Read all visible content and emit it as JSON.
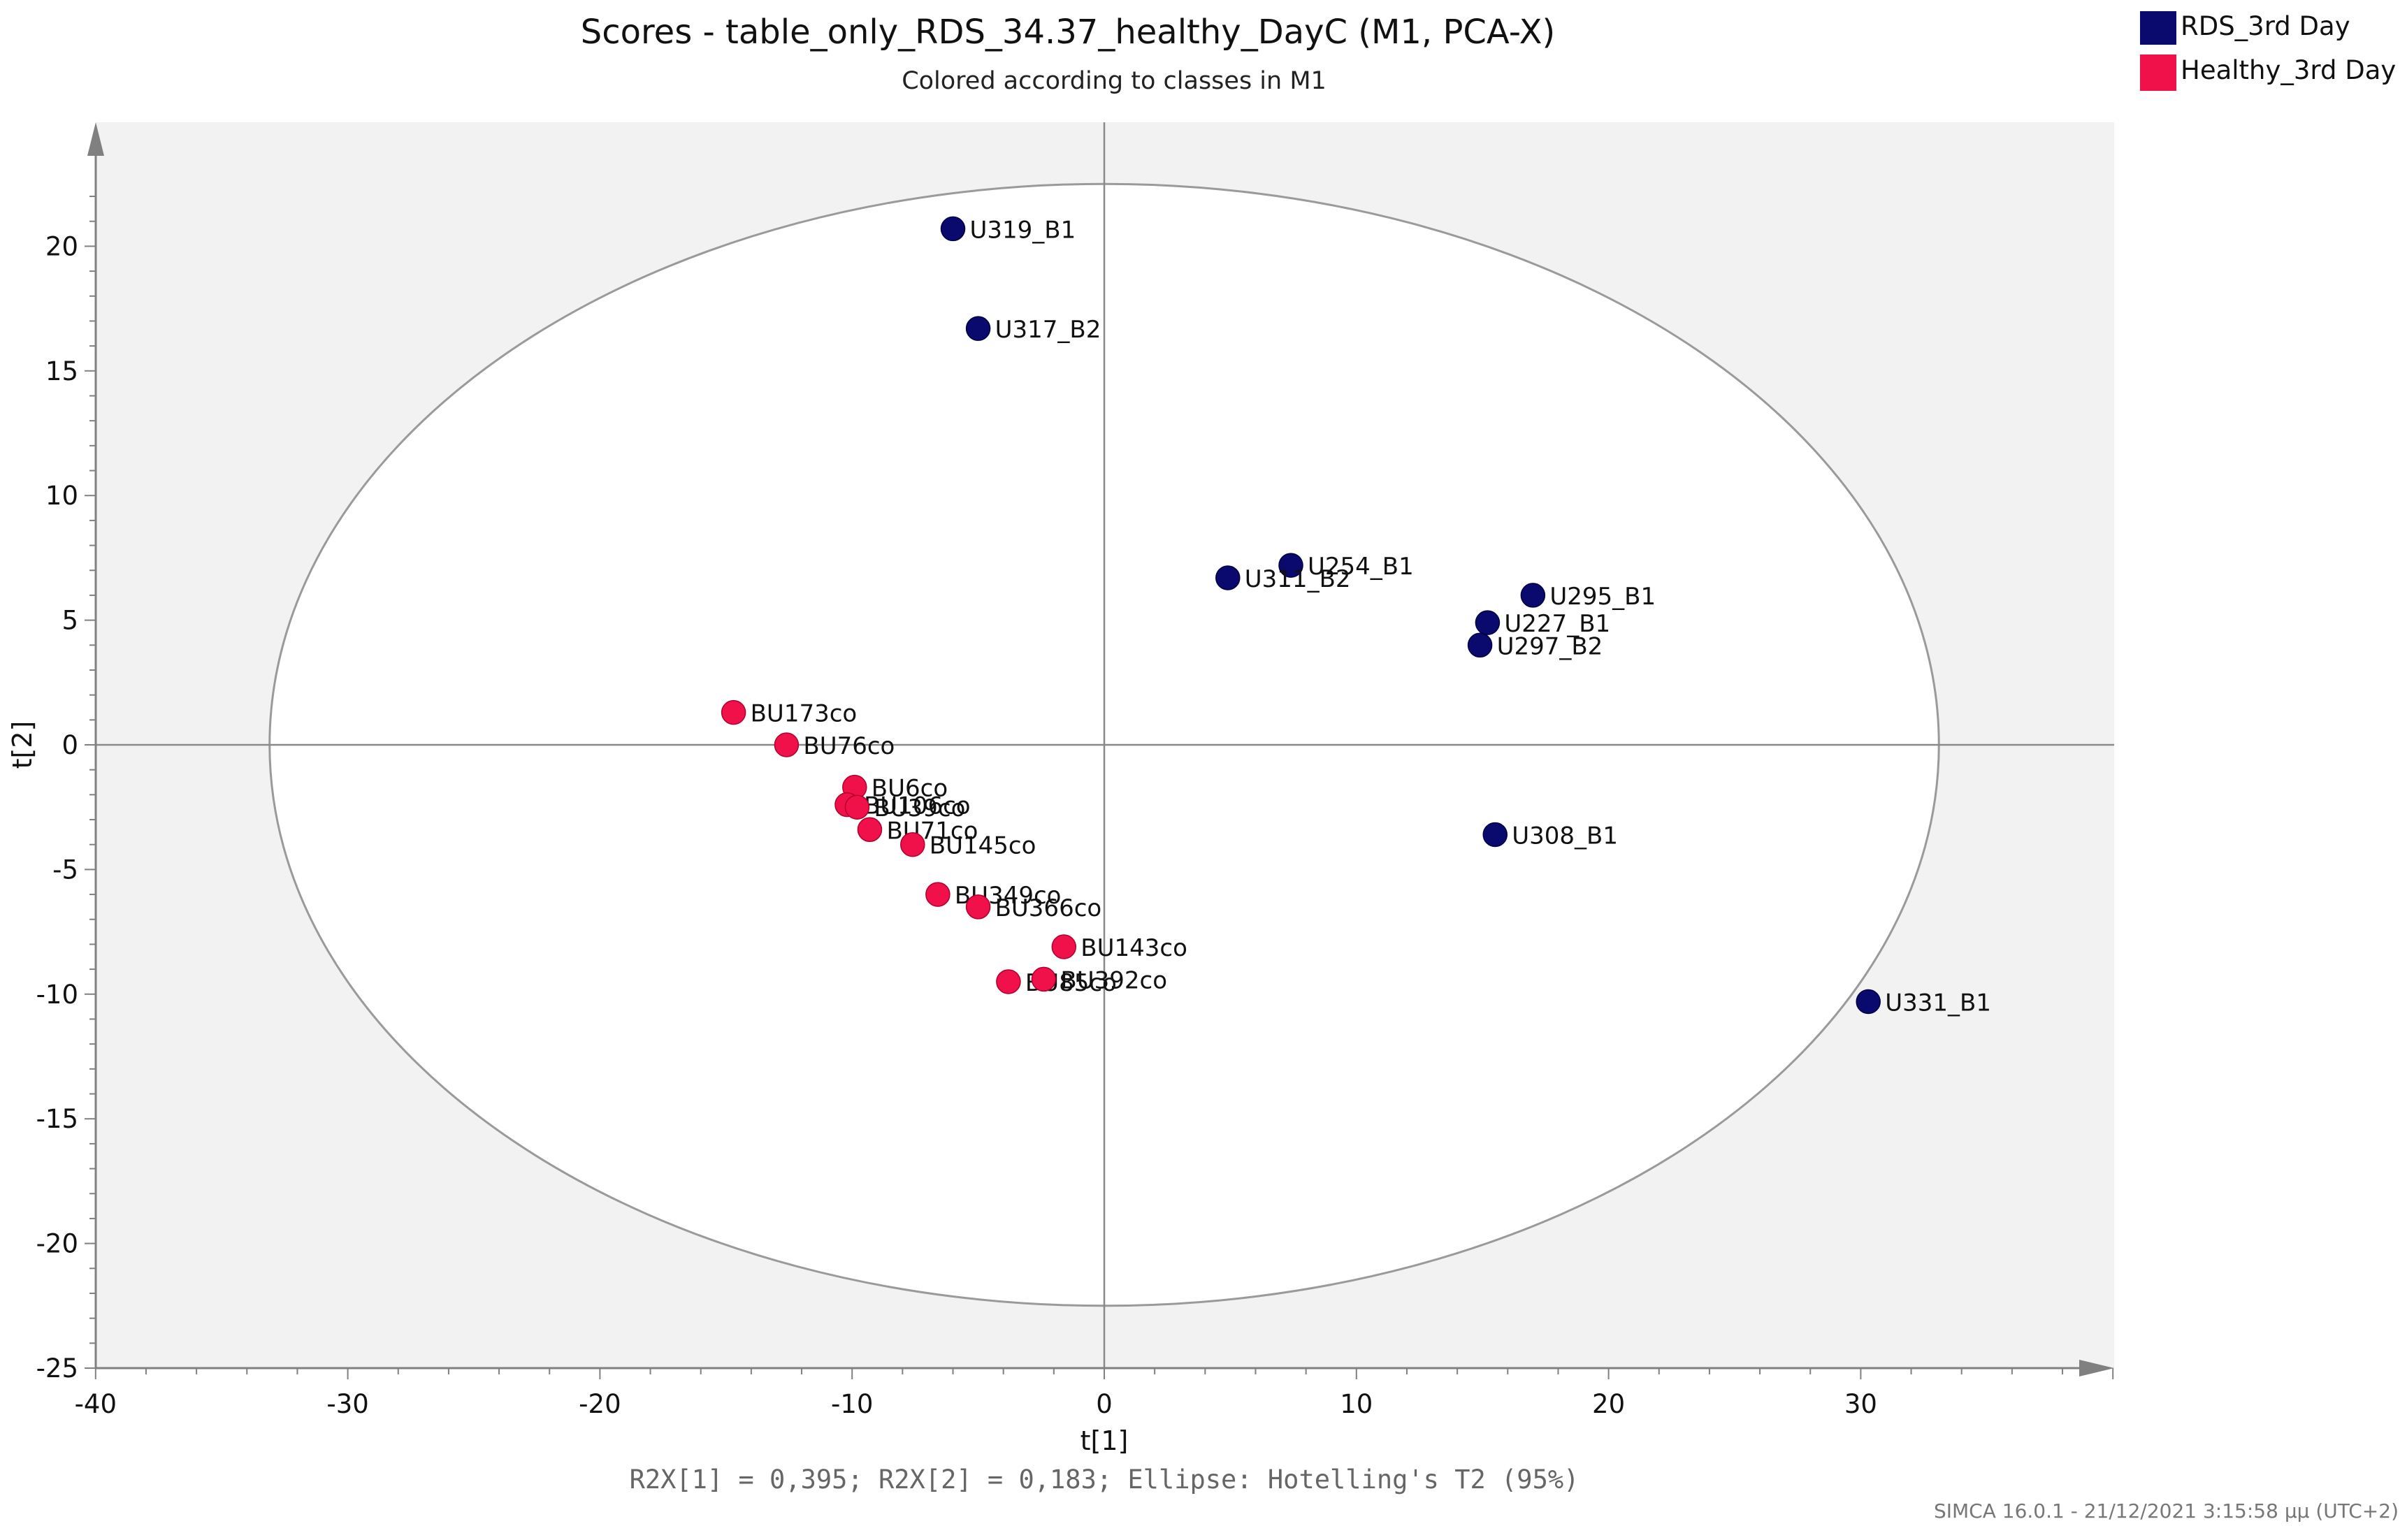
{
  "colors": {
    "rds": "#0a0a6e",
    "healthy": "#f0104a",
    "plot_bg": "#f2f2f2",
    "ellipse_fill": "#ffffff",
    "ellipse_stroke": "#9a9a9a",
    "axis": "#808080"
  },
  "chart_data": {
    "type": "scatter",
    "title": "Scores - table_only_RDS_34.37_healthy_DayC (M1, PCA-X)",
    "subtitle": "Colored according to classes in M1",
    "xlabel": "t[1]",
    "ylabel": "t[2]",
    "xlim": [
      -40,
      40
    ],
    "ylim": [
      -25,
      25
    ],
    "xticks": [
      -40,
      -30,
      -20,
      -10,
      0,
      10,
      20,
      30
    ],
    "yticks": [
      -25,
      -20,
      -15,
      -10,
      -5,
      0,
      5,
      10,
      15,
      20
    ],
    "ellipse": {
      "label": "Hotelling's T2 (95%)",
      "rx": 33.1,
      "ry": 22.5
    },
    "legend_position": "top-right",
    "series": [
      {
        "name": "RDS_3rd Day",
        "color": "#0a0a6e",
        "points": [
          {
            "label": "U319_B1",
            "x": -6.0,
            "y": 20.7
          },
          {
            "label": "U317_B2",
            "x": -5.0,
            "y": 16.7
          },
          {
            "label": "U254_B1",
            "x": 7.4,
            "y": 7.2
          },
          {
            "label": "U311_B2",
            "x": 4.9,
            "y": 6.7
          },
          {
            "label": "U295_B1",
            "x": 17.0,
            "y": 6.0
          },
          {
            "label": "U227_B1",
            "x": 15.2,
            "y": 4.9
          },
          {
            "label": "U297_B2",
            "x": 14.9,
            "y": 4.0
          },
          {
            "label": "U308_B1",
            "x": 15.5,
            "y": -3.6
          },
          {
            "label": "U331_B1",
            "x": 30.3,
            "y": -10.3
          }
        ]
      },
      {
        "name": "Healthy_3rd Day",
        "color": "#f0104a",
        "points": [
          {
            "label": "BU173co",
            "x": -14.7,
            "y": 1.3
          },
          {
            "label": "BU76co",
            "x": -12.6,
            "y": 0.0
          },
          {
            "label": "BU6co",
            "x": -9.9,
            "y": -1.7
          },
          {
            "label": "BU106co",
            "x": -10.2,
            "y": -2.4
          },
          {
            "label": "BU39co",
            "x": -9.8,
            "y": -2.5
          },
          {
            "label": "BU71co",
            "x": -9.3,
            "y": -3.4
          },
          {
            "label": "BU145co",
            "x": -7.6,
            "y": -4.0
          },
          {
            "label": "BU349co",
            "x": -6.6,
            "y": -6.0
          },
          {
            "label": "BU366co",
            "x": -5.0,
            "y": -6.5
          },
          {
            "label": "BU143co",
            "x": -1.6,
            "y": -8.1
          },
          {
            "label": "BU85co",
            "x": -3.8,
            "y": -9.5
          },
          {
            "label": "BU392co",
            "x": -2.4,
            "y": -9.4
          }
        ]
      }
    ],
    "footer_text": "R2X[1] = 0,395; R2X[2] = 0,183; Ellipse: Hotelling's T2 (95%)",
    "timestamp": "SIMCA 16.0.1 - 21/12/2021 3:15:58 μμ (UTC+2)"
  }
}
